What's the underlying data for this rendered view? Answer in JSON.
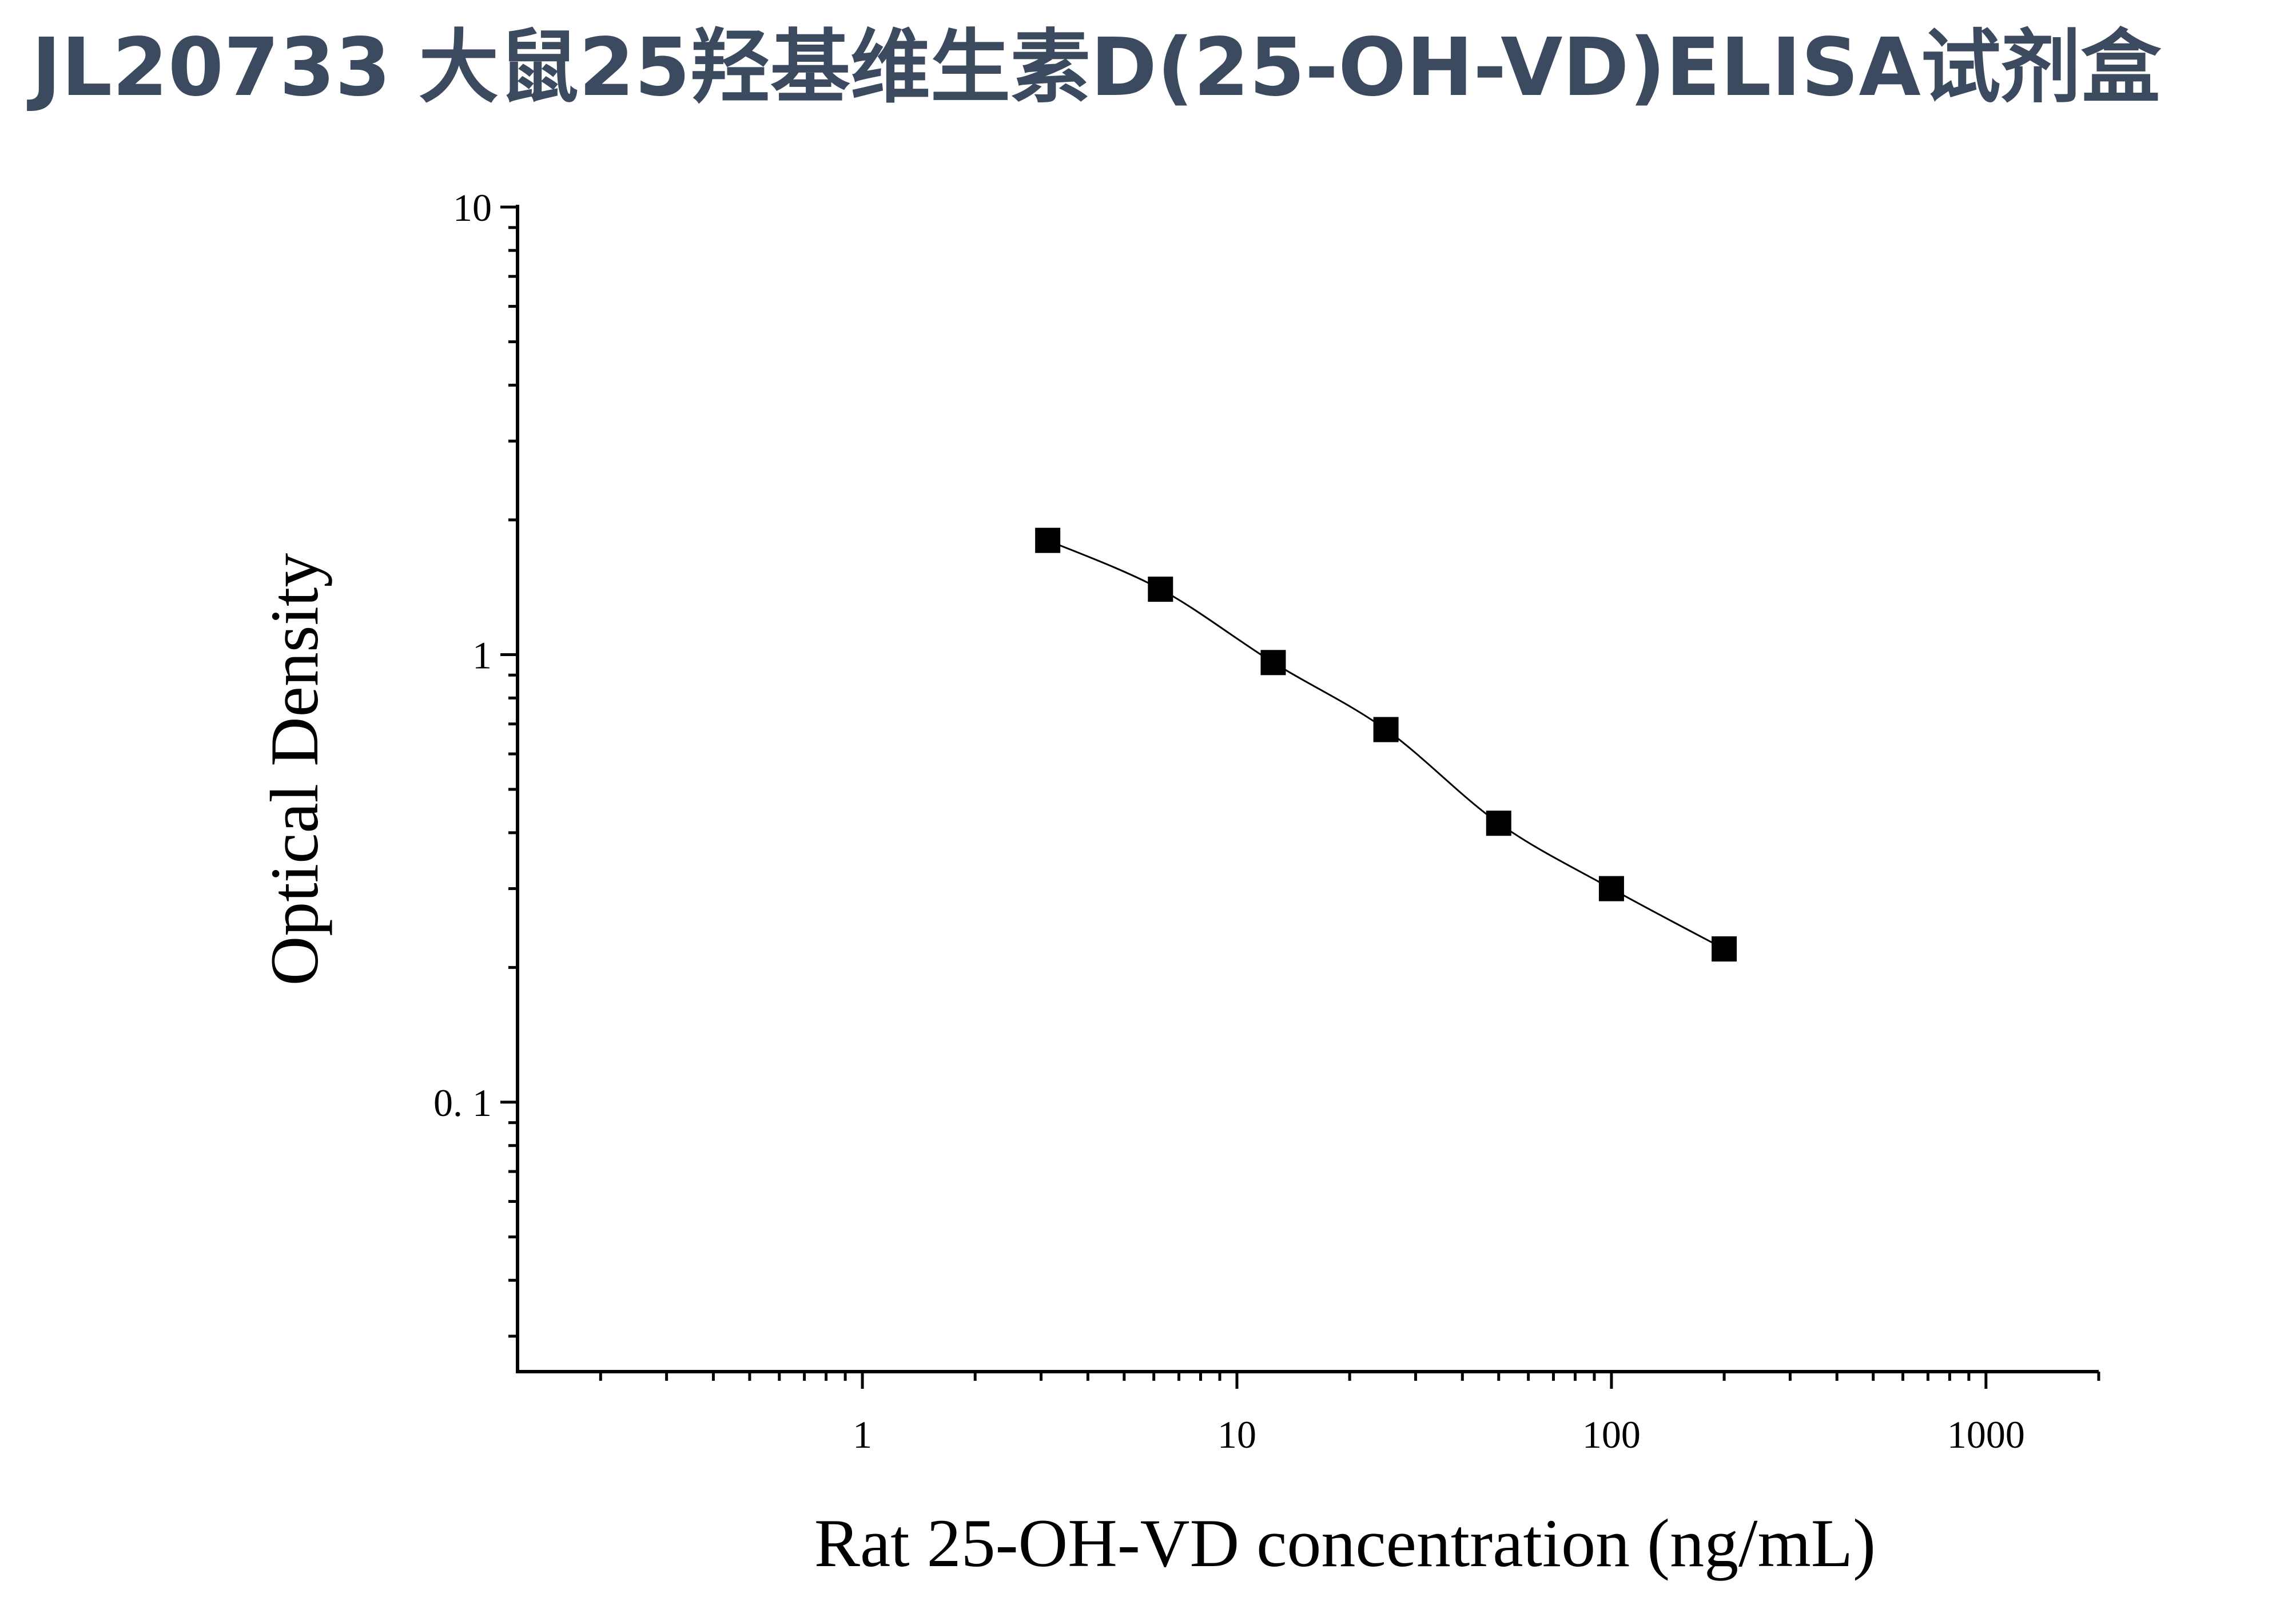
{
  "header": {
    "title": "JL20733 大鼠25羟基维生素D(25-OH-VD)ELISA试剂盒"
  },
  "chart_data": {
    "type": "scatter",
    "title": "JL20733 大鼠25羟基维生素D(25-OH-VD)ELISA试剂盒",
    "xlabel": "Rat 25-OH-VD concentration (ng/mL)",
    "ylabel": "Optical Density",
    "x_scale": "log",
    "y_scale": "log",
    "xlim": [
      0.12,
      2000
    ],
    "ylim": [
      0.025,
      10
    ],
    "x_ticks": [
      {
        "value": 1,
        "label": "1"
      },
      {
        "value": 10,
        "label": "10"
      },
      {
        "value": 100,
        "label": "100"
      },
      {
        "value": 1000,
        "label": "1000"
      }
    ],
    "y_ticks": [
      {
        "value": 0.1,
        "label": "0. 1"
      },
      {
        "value": 1,
        "label": "1"
      },
      {
        "value": 10,
        "label": "10"
      }
    ],
    "grid": false,
    "legend": "none",
    "series": [
      {
        "marker": "square",
        "color": "#000000",
        "fit_line": true,
        "x": [
          3.125,
          6.25,
          12.5,
          25,
          50,
          100,
          200
        ],
        "y": [
          1.8,
          1.4,
          0.96,
          0.68,
          0.42,
          0.3,
          0.22
        ]
      }
    ]
  }
}
